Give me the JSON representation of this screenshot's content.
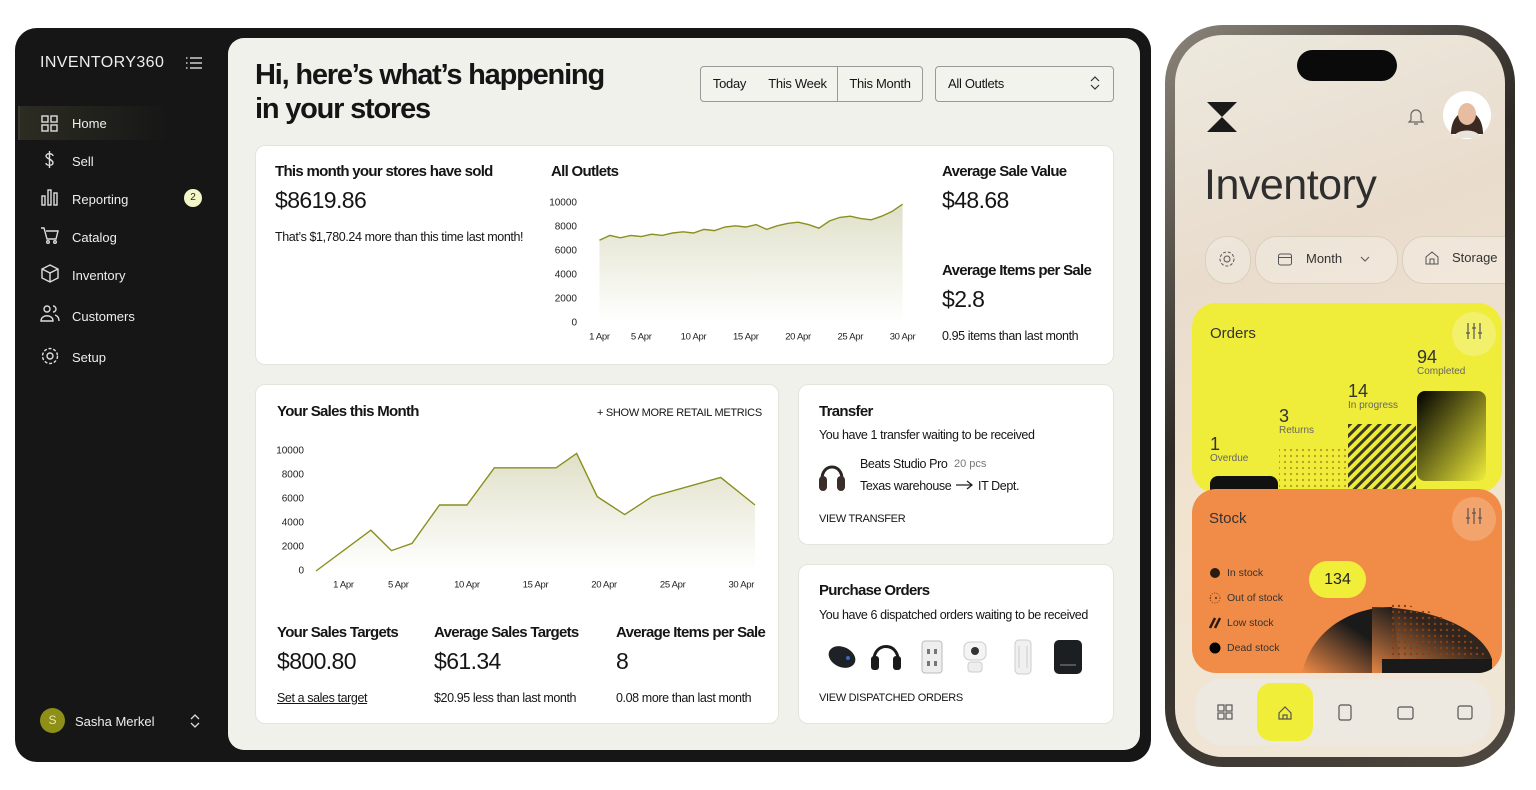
{
  "sidebar": {
    "brand": "INVENTORY360",
    "nav": [
      {
        "label": "Home"
      },
      {
        "label": "Sell"
      },
      {
        "label": "Reporting",
        "badge": "2"
      },
      {
        "label": "Catalog"
      },
      {
        "label": "Inventory"
      },
      {
        "label": "Customers"
      },
      {
        "label": "Setup"
      }
    ],
    "user": {
      "initial": "S",
      "name": "Sasha Merkel"
    }
  },
  "header": {
    "title": [
      "Hi, here’s what’s happening",
      "in your stores"
    ],
    "filters": [
      "Today",
      "This Week",
      "This Month"
    ],
    "outlet": "All Outlets"
  },
  "summary": {
    "sold_label": "This month your stores have sold",
    "sold_value": "$8619.86",
    "sold_note": "That’s $1,780.24 more than this time last month!",
    "avg_sale_label": "Average Sale Value",
    "avg_sale_value": "$48.68",
    "avg_items_label": "Average Items per Sale",
    "avg_items_value": "$2.8",
    "avg_items_note": "0.95 items than last month"
  },
  "chart_data": [
    {
      "type": "area",
      "title": "All Outlets",
      "x": [
        1,
        2,
        3,
        4,
        5,
        6,
        7,
        8,
        9,
        10,
        11,
        12,
        13,
        14,
        15,
        16,
        17,
        18,
        19,
        20,
        21,
        22,
        23,
        24,
        25,
        26,
        27,
        28,
        29,
        30
      ],
      "values": [
        6900,
        7300,
        7100,
        7300,
        7200,
        7400,
        7300,
        7500,
        7600,
        7500,
        7800,
        7700,
        8000,
        8100,
        8000,
        8200,
        7800,
        8100,
        8300,
        8400,
        8200,
        7900,
        8500,
        8800,
        8900,
        8700,
        8600,
        8900,
        9300,
        9900
      ],
      "color": "#8b8f1e",
      "xlim": [
        0,
        31
      ],
      "xticks": [
        {
          "value": 1,
          "label": "1 Apr"
        },
        {
          "value": 5,
          "label": "5 Apr"
        },
        {
          "value": 10,
          "label": "10 Apr"
        },
        {
          "value": 15,
          "label": "15 Apr"
        },
        {
          "value": 20,
          "label": "20 Apr"
        },
        {
          "value": 25,
          "label": "25 Apr"
        },
        {
          "value": 30,
          "label": "30 Apr"
        }
      ],
      "ylim": [
        0,
        10000
      ],
      "yticks": [
        0,
        2000,
        4000,
        6000,
        8000,
        10000
      ],
      "grid": false
    },
    {
      "type": "area",
      "title": "Your Sales this Month",
      "x": [
        -1,
        3,
        4.5,
        6,
        8,
        10,
        12,
        16.5,
        18,
        19.5,
        21.5,
        23.5,
        28.5,
        31
      ],
      "values": [
        0,
        3400,
        1700,
        2300,
        5500,
        5500,
        8600,
        8600,
        9800,
        6200,
        4700,
        6200,
        7800,
        5500
      ],
      "color": "#8b8f1e",
      "xlim": [
        -1,
        31
      ],
      "xticks": [
        {
          "value": 1,
          "label": "1 Apr"
        },
        {
          "value": 5,
          "label": "5 Apr"
        },
        {
          "value": 10,
          "label": "10 Apr"
        },
        {
          "value": 15,
          "label": "15 Apr"
        },
        {
          "value": 20,
          "label": "20 Apr"
        },
        {
          "value": 25,
          "label": "25 Apr"
        },
        {
          "value": 30,
          "label": "30 Apr"
        }
      ],
      "ylim": [
        0,
        10000
      ],
      "yticks": [
        0,
        2000,
        4000,
        6000,
        8000,
        10000
      ],
      "grid": false
    }
  ],
  "sales": {
    "more_link": "+ SHOW MORE RETAIL METRICS",
    "metrics": [
      {
        "label": "Your Sales Targets",
        "value": "$800.80",
        "note": "Set a sales target"
      },
      {
        "label": "Average Sales Targets",
        "value": "$61.34",
        "note": "$20.95 less than last month"
      },
      {
        "label": "Average Items per Sale",
        "value": "8",
        "note": "0.08 more  than last month"
      }
    ]
  },
  "transfer": {
    "title": "Transfer",
    "subtitle": "You have 1 transfer waiting to be received",
    "product": "Beats Studio Pro",
    "quantity": "20 pcs",
    "from": "Texas warehouse",
    "to": "IT Dept.",
    "link": "VIEW TRANSFER"
  },
  "purchase_orders": {
    "title": "Purchase Orders",
    "subtitle": "You have 6 dispatched orders waiting to be received",
    "link": "VIEW DISPATCHED ORDERS"
  },
  "phone": {
    "title": "Inventory",
    "filters": [
      "Month",
      "Storage"
    ],
    "orders": {
      "title": "Orders",
      "items": [
        {
          "value": 1,
          "label": "Overdue"
        },
        {
          "value": 3,
          "label": "Returns"
        },
        {
          "value": 14,
          "label": "In progress"
        },
        {
          "value": 94,
          "label": "Completed"
        }
      ]
    },
    "stock": {
      "title": "Stock",
      "legend": [
        "In stock",
        "Out of stock",
        "Low stock",
        "Dead stock"
      ],
      "total": 134
    }
  }
}
